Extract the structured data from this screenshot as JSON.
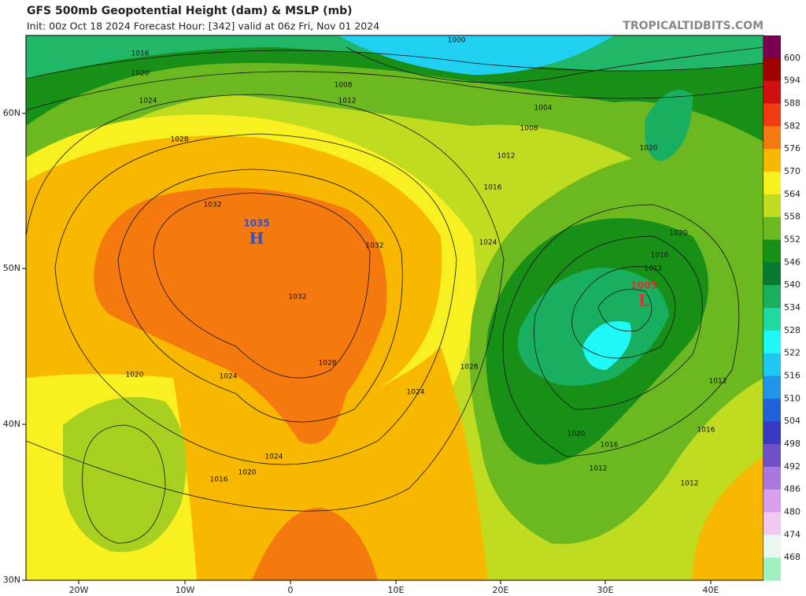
{
  "header": {
    "title": "GFS 500mb Geopotential Height (dam) & MSLP (mb)",
    "subtitle": "Init: 00z Oct 18 2024   Forecast Hour: [342]   valid at 06z Fri, Nov 01 2024",
    "site": "TROPICALTIDBITS.COM"
  },
  "colorbar": {
    "labels": [
      "600",
      "594",
      "588",
      "582",
      "576",
      "570",
      "564",
      "558",
      "552",
      "546",
      "540",
      "534",
      "528",
      "522",
      "516",
      "510",
      "504",
      "498",
      "492",
      "486",
      "480",
      "474",
      "468"
    ],
    "colors": [
      "#7a0050",
      "#a00000",
      "#d01010",
      "#f03a10",
      "#f47a10",
      "#f8b800",
      "#f8f020",
      "#c0dc20",
      "#6cb820",
      "#189018",
      "#0a7a30",
      "#18b060",
      "#20d8a0",
      "#20f8f8",
      "#20c8f0",
      "#2094e8",
      "#2060d8",
      "#3838c0",
      "#7050c8",
      "#a878e0",
      "#d8a0ec",
      "#f0c8f0",
      "#e8f8f0",
      "#a0f0c0"
    ]
  },
  "axes": {
    "lat": [
      "60N",
      "50N",
      "40N",
      "30N"
    ],
    "lon": [
      "20W",
      "10W",
      "0",
      "10E",
      "20E",
      "30E",
      "40E"
    ]
  },
  "pressure_centers": [
    {
      "value": "1035",
      "letter": "H"
    },
    {
      "value": "1005",
      "letter": "L"
    }
  ],
  "isobar_labels": [
    "1016",
    "1020",
    "1024",
    "1028",
    "1032",
    "1032",
    "1028",
    "1024",
    "1020",
    "1016",
    "1020",
    "1024",
    "1024",
    "1028",
    "1032",
    "1000",
    "1004",
    "1008",
    "1012",
    "1016",
    "1008",
    "1012",
    "1020",
    "1016",
    "1012",
    "1020",
    "1024",
    "1020",
    "1016",
    "1012",
    "1012",
    "1016",
    "1012"
  ]
}
